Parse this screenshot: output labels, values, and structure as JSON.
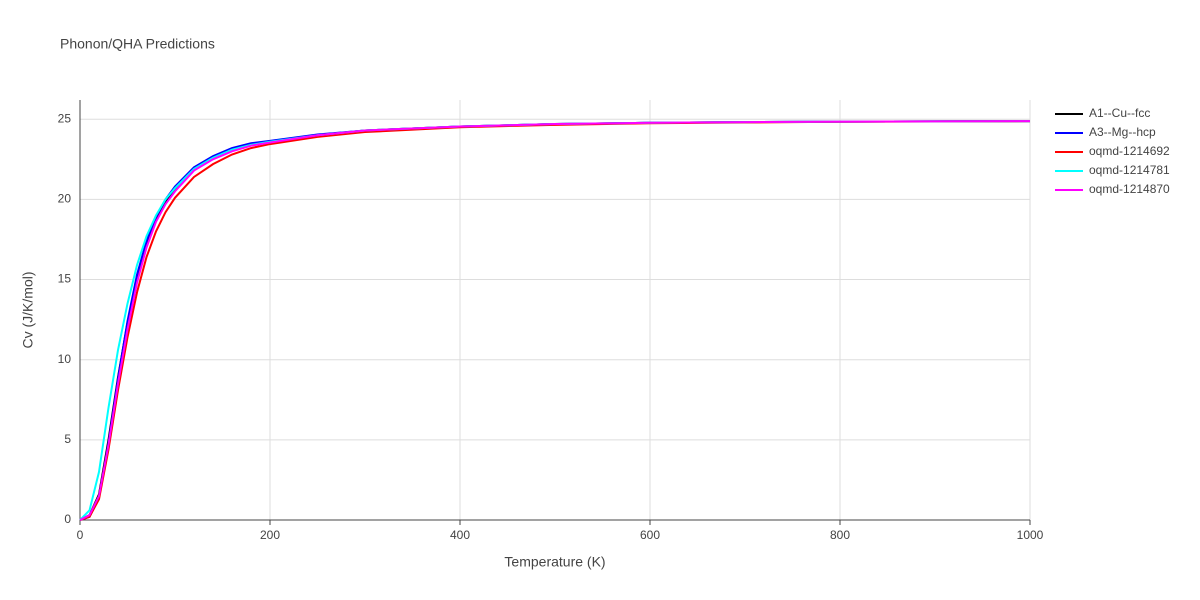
{
  "chart_data": {
    "type": "line",
    "title": "Phonon/QHA Predictions",
    "x_label": "Temperature (K)",
    "y_label": "Cv (J/K/mol)",
    "x": [
      0,
      10,
      20,
      30,
      40,
      50,
      60,
      70,
      80,
      90,
      100,
      120,
      140,
      160,
      180,
      200,
      250,
      300,
      400,
      500,
      600,
      700,
      800,
      900,
      1000
    ],
    "series": [
      {
        "name": "A1--Cu--fcc",
        "color": "#000000",
        "values": [
          0,
          0.3,
          1.6,
          5.0,
          8.9,
          12.3,
          15.1,
          17.2,
          18.7,
          19.8,
          20.6,
          21.9,
          22.6,
          23.1,
          23.4,
          23.6,
          24.0,
          24.3,
          24.55,
          24.7,
          24.78,
          24.82,
          24.85,
          24.87,
          24.88
        ]
      },
      {
        "name": "A3--Mg--hcp",
        "color": "#0000ff",
        "values": [
          0,
          0.2,
          1.4,
          4.8,
          8.8,
          12.4,
          15.3,
          17.4,
          18.9,
          20.0,
          20.8,
          22.0,
          22.7,
          23.2,
          23.5,
          23.65,
          24.05,
          24.3,
          24.55,
          24.7,
          24.78,
          24.82,
          24.85,
          24.87,
          24.88
        ]
      },
      {
        "name": "oqmd-1214692",
        "color": "#ff0000",
        "values": [
          0,
          0.2,
          1.3,
          4.4,
          8.1,
          11.4,
          14.2,
          16.4,
          18.0,
          19.2,
          20.1,
          21.4,
          22.2,
          22.8,
          23.2,
          23.45,
          23.9,
          24.2,
          24.5,
          24.65,
          24.75,
          24.8,
          24.84,
          24.86,
          24.88
        ]
      },
      {
        "name": "oqmd-1214781",
        "color": "#00ffff",
        "values": [
          0,
          0.6,
          3.0,
          7.0,
          10.6,
          13.5,
          15.9,
          17.7,
          19.0,
          20.0,
          20.7,
          21.9,
          22.6,
          23.1,
          23.4,
          23.6,
          24.0,
          24.3,
          24.55,
          24.7,
          24.78,
          24.82,
          24.85,
          24.87,
          24.88
        ]
      },
      {
        "name": "oqmd-1214870",
        "color": "#ff00ff",
        "values": [
          0,
          0.3,
          1.5,
          4.7,
          8.5,
          11.9,
          14.8,
          17.0,
          18.6,
          19.7,
          20.5,
          21.8,
          22.5,
          23.0,
          23.35,
          23.55,
          24.0,
          24.3,
          24.55,
          24.7,
          24.78,
          24.82,
          24.85,
          24.87,
          24.88
        ]
      }
    ],
    "xlim": [
      0,
      1000
    ],
    "ylim": [
      0,
      26.2
    ],
    "xticks": [
      0,
      200,
      400,
      600,
      800,
      1000
    ],
    "yticks": [
      0,
      5,
      10,
      15,
      20,
      25
    ],
    "grid": true,
    "legend_position": "right"
  }
}
